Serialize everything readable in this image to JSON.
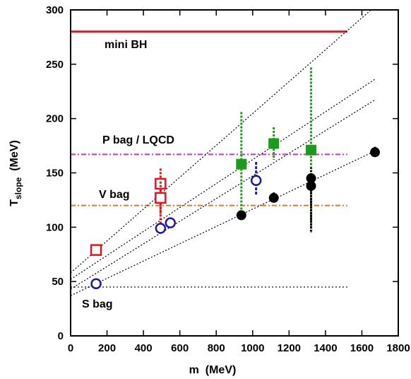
{
  "chart_data": {
    "type": "scatter",
    "xlabel": "m  (MeV)",
    "ylabel_main": "T",
    "ylabel_sub": "slope",
    "ylabel_unit": "  (MeV)",
    "xlim": [
      0,
      1800
    ],
    "ylim": [
      0,
      300
    ],
    "xticks": [
      0,
      200,
      400,
      600,
      800,
      1000,
      1200,
      1400,
      1600,
      1800
    ],
    "yticks": [
      0,
      50,
      100,
      150,
      200,
      250,
      300
    ],
    "grid": false,
    "hlines": [
      {
        "label": "mini BH",
        "y": 280,
        "color": "#e0141e",
        "style": "solid"
      },
      {
        "label": "P bag / LQCD",
        "y": 167,
        "color": "#cc33cc",
        "style": "dashdot"
      },
      {
        "label": "V bag",
        "y": 120,
        "color": "#e07a1e",
        "style": "dashdot"
      },
      {
        "label": "S bag",
        "y": 45,
        "color": "#666666",
        "style": "dotted"
      }
    ],
    "fit_lines": [
      {
        "x0": 0,
        "y0": 58,
        "x1": 1650,
        "y1": 300
      },
      {
        "x0": 0,
        "y0": 52,
        "x1": 1670,
        "y1": 236
      },
      {
        "x0": 0,
        "y0": 43,
        "x1": 1670,
        "y1": 217
      },
      {
        "x0": 0,
        "y0": 37,
        "x1": 1670,
        "y1": 170
      }
    ],
    "series": [
      {
        "marker": "open-square",
        "color": "#e0141e",
        "points": [
          {
            "x": 140,
            "y": 79,
            "ylo": 77,
            "yhi": 81
          },
          {
            "x": 494,
            "y": 140,
            "ylo": 102,
            "yhi": 154
          },
          {
            "x": 494,
            "y": 127,
            "ylo": 112,
            "yhi": 142
          }
        ]
      },
      {
        "marker": "open-circle",
        "color": "#1a1aaa",
        "points": [
          {
            "x": 140,
            "y": 48,
            "ylo": 43,
            "yhi": 52
          },
          {
            "x": 494,
            "y": 99,
            "ylo": 97,
            "yhi": 101
          },
          {
            "x": 548,
            "y": 104,
            "ylo": 102,
            "yhi": 106
          },
          {
            "x": 1019,
            "y": 143,
            "ylo": 130,
            "yhi": 160
          }
        ]
      },
      {
        "marker": "filled-square",
        "color": "#1a9c1a",
        "points": [
          {
            "x": 938,
            "y": 158,
            "ylo": 108,
            "yhi": 206
          },
          {
            "x": 1116,
            "y": 177,
            "ylo": 162,
            "yhi": 192
          },
          {
            "x": 1321,
            "y": 171,
            "ylo": 94,
            "yhi": 247
          }
        ]
      },
      {
        "marker": "filled-circle",
        "color": "#000000",
        "points": [
          {
            "x": 938,
            "y": 111,
            "ylo": 108,
            "yhi": 114
          },
          {
            "x": 1116,
            "y": 127,
            "ylo": 122,
            "yhi": 132
          },
          {
            "x": 1321,
            "y": 145,
            "ylo": 95,
            "yhi": 155
          },
          {
            "x": 1321,
            "y": 138,
            "ylo": 100,
            "yhi": 148
          },
          {
            "x": 1672,
            "y": 169,
            "ylo": 165,
            "yhi": 174
          }
        ]
      }
    ]
  }
}
